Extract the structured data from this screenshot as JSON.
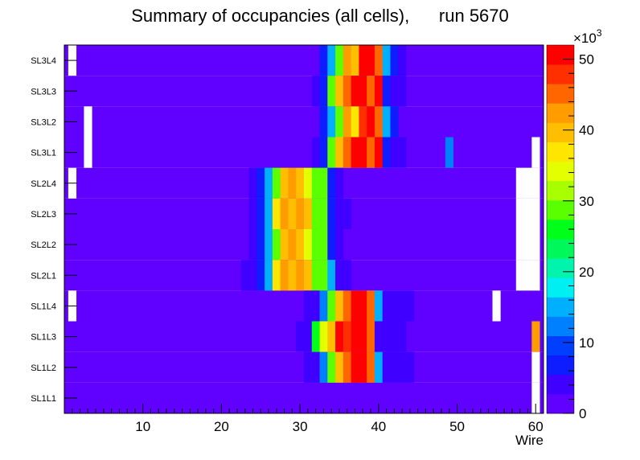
{
  "chart_data": {
    "type": "heatmap",
    "title": "Summary of occupancies (all cells),      run 5670",
    "xlabel": "Wire",
    "xlim": [
      0,
      61
    ],
    "x_ticks": [
      10,
      20,
      30,
      40,
      50,
      60
    ],
    "rows": [
      "SL3L4",
      "SL3L3",
      "SL3L2",
      "SL3L1",
      "SL2L4",
      "SL2L3",
      "SL2L2",
      "SL2L1",
      "SL1L4",
      "SL1L3",
      "SL1L2",
      "SL1L1"
    ],
    "z_max": 52000,
    "colorbar": {
      "exponent_label": "×10",
      "exponent": "3",
      "ticks": [
        0,
        10,
        20,
        30,
        40,
        50
      ]
    },
    "palette": [
      "#6000ff",
      "#3f00ff",
      "#0e1dff",
      "#003fff",
      "#0080ff",
      "#00b0ff",
      "#00eff2",
      "#00f4ad",
      "#00f85b",
      "#00ff19",
      "#5aff00",
      "#a8ff00",
      "#e3ff00",
      "#ffe600",
      "#ffbe00",
      "#ff9c00",
      "#ff6600",
      "#ff2f00",
      "#ff0000"
    ],
    "background_value": 2000,
    "segments": [
      {
        "row": "SL3L4",
        "cells": [
          [
            1,
            0
          ],
          [
            33,
            6000
          ],
          [
            34,
            15000
          ],
          [
            35,
            30000
          ],
          [
            36,
            42000
          ],
          [
            37,
            40000
          ],
          [
            38,
            50000
          ],
          [
            39,
            52000
          ],
          [
            40,
            46000
          ],
          [
            41,
            15000
          ],
          [
            42,
            6000
          ],
          [
            43,
            3500
          ]
        ]
      },
      {
        "row": "SL3L3",
        "cells": [
          [
            32,
            4000
          ],
          [
            33,
            7000
          ],
          [
            34,
            30000
          ],
          [
            35,
            40000
          ],
          [
            36,
            45000
          ],
          [
            37,
            51000
          ],
          [
            38,
            50000
          ],
          [
            39,
            45000
          ],
          [
            40,
            50000
          ],
          [
            41,
            6000
          ],
          [
            42,
            4000
          ],
          [
            43,
            4000
          ]
        ]
      },
      {
        "row": "SL3L2",
        "cells": [
          [
            3,
            0
          ],
          [
            33,
            6000
          ],
          [
            34,
            15000
          ],
          [
            35,
            30000
          ],
          [
            36,
            42000
          ],
          [
            37,
            38000
          ],
          [
            38,
            48000
          ],
          [
            39,
            52000
          ],
          [
            40,
            46000
          ],
          [
            41,
            15000
          ],
          [
            42,
            6000
          ]
        ]
      },
      {
        "row": "SL3L1",
        "cells": [
          [
            3,
            0
          ],
          [
            32,
            4000
          ],
          [
            33,
            6000
          ],
          [
            34,
            30000
          ],
          [
            35,
            40000
          ],
          [
            36,
            45000
          ],
          [
            37,
            51000
          ],
          [
            38,
            50000
          ],
          [
            39,
            45000
          ],
          [
            40,
            50000
          ],
          [
            41,
            6000
          ],
          [
            42,
            4000
          ],
          [
            43,
            4000
          ],
          [
            49,
            12000
          ],
          [
            60,
            0
          ]
        ]
      },
      {
        "row": "SL2L4",
        "cells": [
          [
            1,
            0
          ],
          [
            24,
            4000
          ],
          [
            25,
            6000
          ],
          [
            26,
            14000
          ],
          [
            27,
            30000
          ],
          [
            28,
            40000
          ],
          [
            29,
            42000
          ],
          [
            30,
            40000
          ],
          [
            31,
            35000
          ],
          [
            32,
            30000
          ],
          [
            33,
            30000
          ],
          [
            34,
            7000
          ],
          [
            35,
            4000
          ],
          [
            58,
            0
          ],
          [
            59,
            0
          ],
          [
            60,
            0
          ]
        ]
      },
      {
        "row": "SL2L3",
        "cells": [
          [
            24,
            4000
          ],
          [
            25,
            6000
          ],
          [
            26,
            15000
          ],
          [
            27,
            36000
          ],
          [
            28,
            42000
          ],
          [
            29,
            40000
          ],
          [
            30,
            43000
          ],
          [
            31,
            40000
          ],
          [
            32,
            30000
          ],
          [
            33,
            30000
          ],
          [
            34,
            6000
          ],
          [
            35,
            4000
          ],
          [
            36,
            4000
          ],
          [
            58,
            0
          ],
          [
            59,
            0
          ],
          [
            60,
            0
          ]
        ]
      },
      {
        "row": "SL2L2",
        "cells": [
          [
            24,
            4000
          ],
          [
            25,
            6000
          ],
          [
            26,
            14000
          ],
          [
            27,
            30000
          ],
          [
            28,
            40000
          ],
          [
            29,
            42000
          ],
          [
            30,
            40000
          ],
          [
            31,
            35000
          ],
          [
            32,
            30000
          ],
          [
            33,
            30000
          ],
          [
            34,
            7000
          ],
          [
            35,
            4000
          ],
          [
            58,
            0
          ],
          [
            59,
            0
          ],
          [
            60,
            0
          ]
        ]
      },
      {
        "row": "SL2L1",
        "cells": [
          [
            23,
            4000
          ],
          [
            24,
            4000
          ],
          [
            25,
            6000
          ],
          [
            26,
            15000
          ],
          [
            27,
            36000
          ],
          [
            28,
            42000
          ],
          [
            29,
            40000
          ],
          [
            30,
            43000
          ],
          [
            31,
            40000
          ],
          [
            32,
            30000
          ],
          [
            33,
            30000
          ],
          [
            34,
            15000
          ],
          [
            35,
            3000
          ],
          [
            36,
            4000
          ],
          [
            58,
            0
          ],
          [
            59,
            0
          ],
          [
            60,
            0
          ]
        ]
      },
      {
        "row": "SL1L4",
        "cells": [
          [
            1,
            0
          ],
          [
            31,
            4000
          ],
          [
            32,
            4000
          ],
          [
            33,
            13000
          ],
          [
            34,
            30000
          ],
          [
            35,
            40000
          ],
          [
            36,
            45000
          ],
          [
            37,
            51000
          ],
          [
            38,
            50000
          ],
          [
            39,
            45000
          ],
          [
            40,
            15000
          ],
          [
            41,
            5000
          ],
          [
            42,
            4000
          ],
          [
            43,
            4000
          ],
          [
            44,
            4000
          ],
          [
            55,
            0
          ]
        ]
      },
      {
        "row": "SL1L3",
        "cells": [
          [
            30,
            4000
          ],
          [
            31,
            4000
          ],
          [
            32,
            25000
          ],
          [
            33,
            35000
          ],
          [
            34,
            40000
          ],
          [
            35,
            51000
          ],
          [
            36,
            48000
          ],
          [
            37,
            50000
          ],
          [
            38,
            52000
          ],
          [
            39,
            45000
          ],
          [
            40,
            5000
          ],
          [
            41,
            4000
          ],
          [
            42,
            4000
          ],
          [
            43,
            4000
          ],
          [
            60,
            43000
          ]
        ]
      },
      {
        "row": "SL1L2",
        "cells": [
          [
            31,
            4000
          ],
          [
            32,
            4000
          ],
          [
            33,
            13000
          ],
          [
            34,
            30000
          ],
          [
            35,
            40000
          ],
          [
            36,
            45000
          ],
          [
            37,
            51000
          ],
          [
            38,
            50000
          ],
          [
            39,
            45000
          ],
          [
            40,
            15000
          ],
          [
            41,
            5000
          ],
          [
            42,
            4000
          ],
          [
            43,
            4000
          ],
          [
            44,
            4000
          ],
          [
            60,
            0
          ]
        ]
      },
      {
        "row": "SL1L1",
        "cells": [
          [
            60,
            0
          ]
        ]
      }
    ]
  }
}
